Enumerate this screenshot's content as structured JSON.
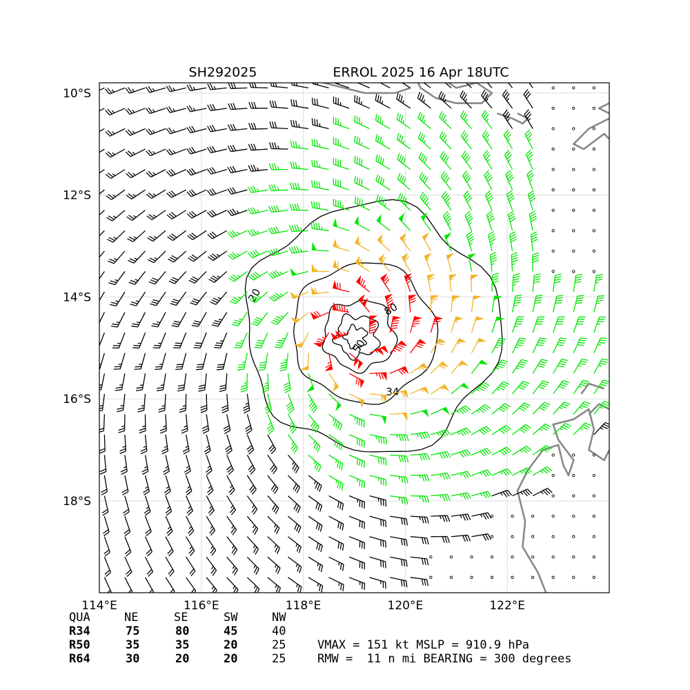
{
  "title": {
    "left": "SH292025",
    "right": "ERROL 2025 16 Apr 18UTC"
  },
  "chart_data": {
    "type": "wind_barb_map",
    "storm_id": "SH292025",
    "storm_name": "ERROL",
    "valid_time": "2025 16 Apr 18UTC",
    "xlim": [
      114.0,
      124.0
    ],
    "ylim": [
      -19.8,
      -9.8
    ],
    "xticks": [
      114,
      116,
      118,
      120,
      122
    ],
    "xtick_labels": [
      "114°E",
      "116°E",
      "118°E",
      "120°E",
      "122°E"
    ],
    "yticks": [
      -10,
      -12,
      -14,
      -16,
      -18
    ],
    "ytick_labels": [
      "10°S",
      "12°S",
      "14°S",
      "16°S",
      "18°S"
    ],
    "grid": true,
    "center": {
      "lon": 119.0,
      "lat": -14.8
    },
    "barb_colors": {
      "below_34kt": "#000000",
      "34_50kt": "#00e600",
      "50_64kt": "#f0b428",
      "above_64kt": "#ff0000"
    },
    "coastline_color": "#888888",
    "contour_levels": [
      20,
      34,
      50,
      64,
      80
    ],
    "contour_labels": [
      "20",
      "34",
      "50",
      "80"
    ],
    "wind_radii": {
      "header": [
        "QUA",
        "NE",
        "SE",
        "SW",
        "NW"
      ],
      "rows": [
        {
          "label": "R34",
          "values": [
            "75",
            "80",
            "45",
            "40"
          ]
        },
        {
          "label": "R50",
          "values": [
            "35",
            "35",
            "20",
            "25"
          ]
        },
        {
          "label": "R64",
          "values": [
            "30",
            "20",
            "20",
            "25"
          ]
        }
      ]
    },
    "vmax_kt": 151,
    "mslp_hpa": 910.9,
    "rmw_nmi": 11,
    "bearing_deg": 300
  },
  "info": {
    "line1": "VMAX = 151 kt MSLP = 910.9 hPa",
    "line2": "RMW =  11 n mi BEARING = 300 degrees"
  }
}
